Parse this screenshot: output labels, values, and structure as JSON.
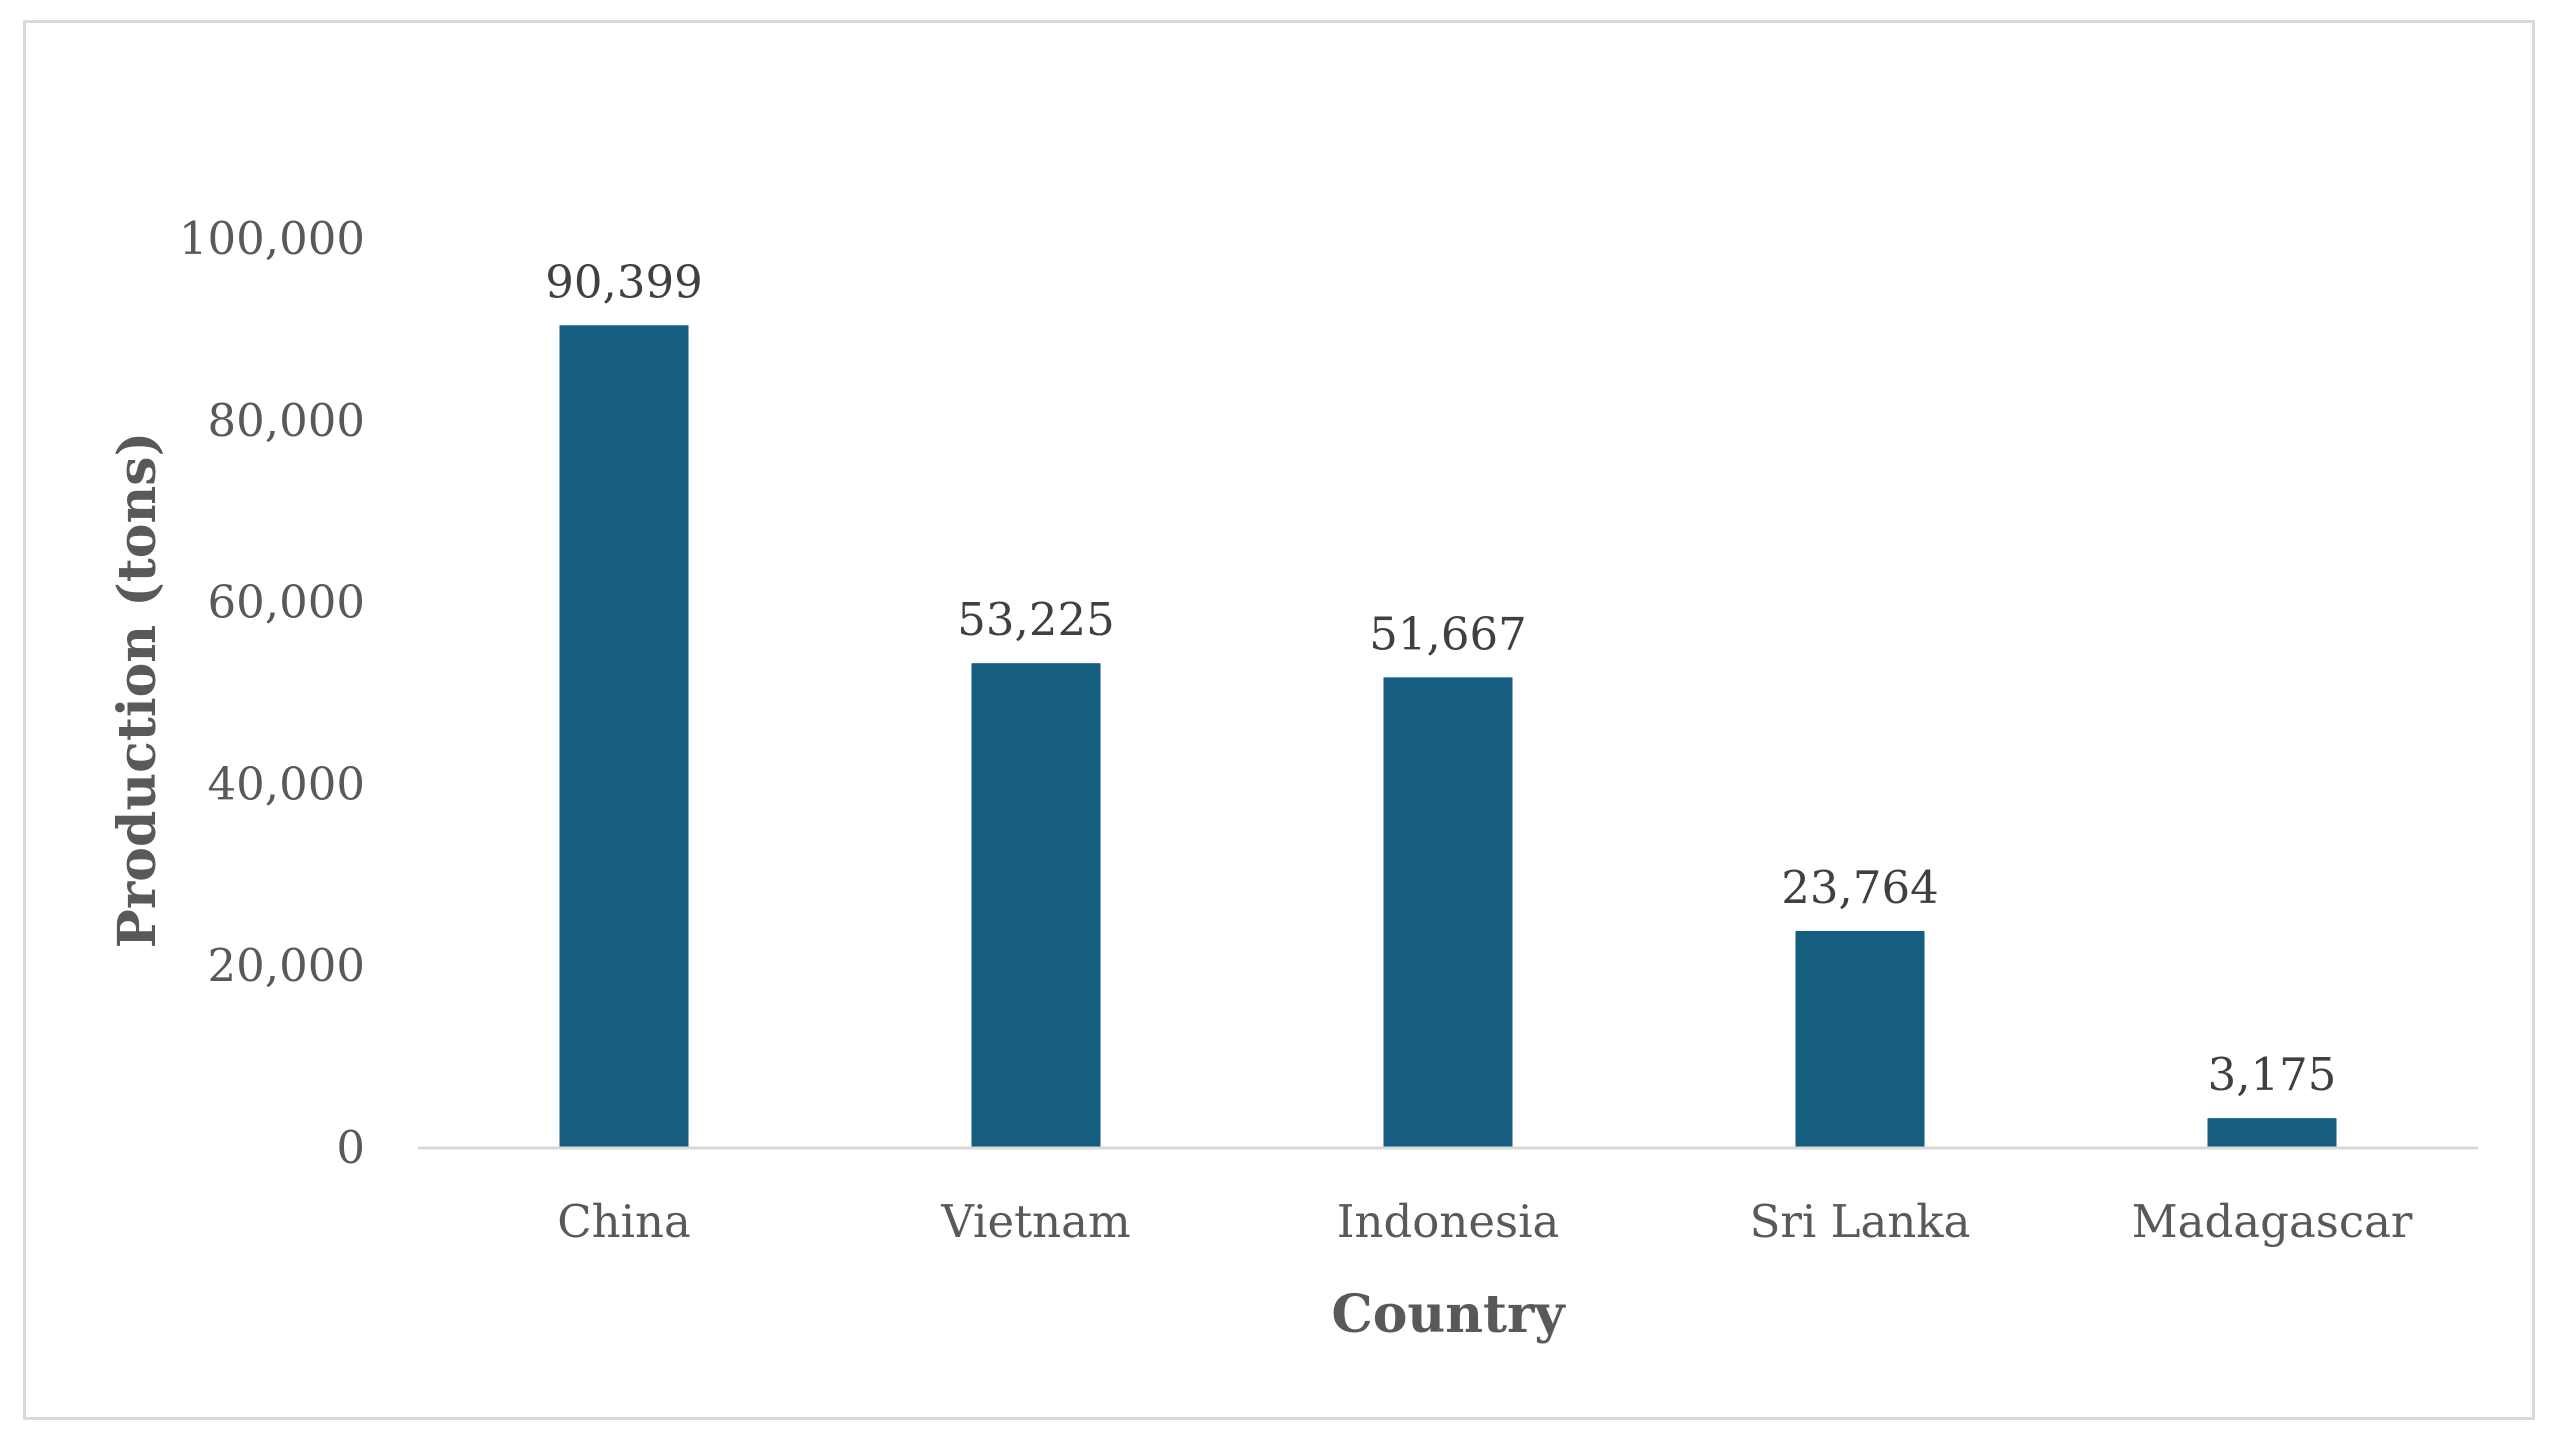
{
  "chart_data": {
    "type": "bar",
    "title": "",
    "xlabel": "Country",
    "ylabel": "Production (tons)",
    "categories": [
      "China",
      "Vietnam",
      "Indonesia",
      "Sri Lanka",
      "Madagascar"
    ],
    "values": [
      90399,
      53225,
      51667,
      23764,
      3175
    ],
    "value_labels": [
      "90,399",
      "53,225",
      "51,667",
      "23,764",
      "3,175"
    ],
    "ylim": [
      0,
      100000
    ],
    "yticks": [
      0,
      20000,
      40000,
      60000,
      80000,
      100000
    ],
    "ytick_labels": [
      "0",
      "20,000",
      "40,000",
      "60,000",
      "80,000",
      "100,000"
    ],
    "grid": false,
    "legend": "none",
    "bar_color": "#165e80"
  }
}
